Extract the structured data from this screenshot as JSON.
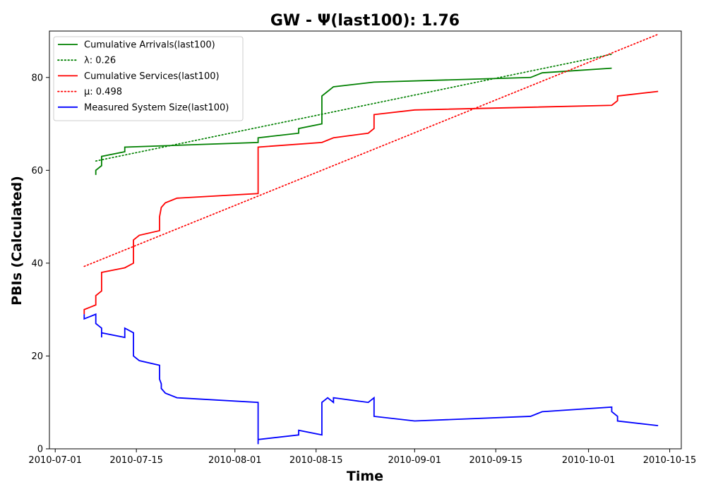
{
  "chart_data": {
    "type": "line",
    "title": "GW -  Ψ(last100): 1.76",
    "xlabel": "Time",
    "ylabel": "PBIs (Calculated)",
    "x_type": "date",
    "xlim": [
      "2010-06-30",
      "2010-10-17"
    ],
    "ylim": [
      0,
      90
    ],
    "x_ticks": [
      "2010-07-01",
      "2010-07-15",
      "2010-08-01",
      "2010-08-15",
      "2010-09-01",
      "2010-09-15",
      "2010-10-01",
      "2010-10-15"
    ],
    "y_ticks": [
      0,
      20,
      40,
      60,
      80
    ],
    "grid": false,
    "legend_position": "top-left",
    "series": [
      {
        "name": "Cumulative Arrivals(last100)",
        "legend_label": "Cumulative Arrivals(last100)",
        "color": "#008000",
        "style": "solid",
        "points": [
          [
            "2010-07-08",
            59
          ],
          [
            "2010-07-08",
            60
          ],
          [
            "2010-07-09",
            61
          ],
          [
            "2010-07-09",
            62
          ],
          [
            "2010-07-09",
            63
          ],
          [
            "2010-07-13",
            64
          ],
          [
            "2010-07-13",
            65
          ],
          [
            "2010-07-20",
            65.3
          ],
          [
            "2010-08-05",
            66
          ],
          [
            "2010-08-05",
            67
          ],
          [
            "2010-08-12",
            68
          ],
          [
            "2010-08-12",
            69
          ],
          [
            "2010-08-16",
            70
          ],
          [
            "2010-08-16",
            75
          ],
          [
            "2010-08-16",
            76
          ],
          [
            "2010-08-17",
            77
          ],
          [
            "2010-08-18",
            78
          ],
          [
            "2010-08-25",
            79
          ],
          [
            "2010-09-21",
            80
          ],
          [
            "2010-09-23",
            81
          ],
          [
            "2010-10-05",
            82
          ]
        ]
      },
      {
        "name": "lambda fit",
        "legend_label": "λ: 0.26",
        "color": "#008000",
        "style": "dotted",
        "points": [
          [
            "2010-07-08",
            62
          ],
          [
            "2010-10-05",
            85
          ]
        ]
      },
      {
        "name": "Cumulative Services(last100)",
        "legend_label": "Cumulative Services(last100)",
        "color": "#ff0000",
        "style": "solid",
        "points": [
          [
            "2010-07-06",
            29
          ],
          [
            "2010-07-06",
            30
          ],
          [
            "2010-07-08",
            31
          ],
          [
            "2010-07-08",
            33
          ],
          [
            "2010-07-09",
            34
          ],
          [
            "2010-07-09",
            36
          ],
          [
            "2010-07-09",
            38
          ],
          [
            "2010-07-13",
            39
          ],
          [
            "2010-07-14.5",
            40
          ],
          [
            "2010-07-14.5",
            45
          ],
          [
            "2010-07-15.5",
            46
          ],
          [
            "2010-07-19",
            47
          ],
          [
            "2010-07-19",
            50
          ],
          [
            "2010-07-19.3",
            52
          ],
          [
            "2010-07-20",
            53
          ],
          [
            "2010-07-22",
            54
          ],
          [
            "2010-08-05",
            55
          ],
          [
            "2010-08-05",
            65
          ],
          [
            "2010-08-16",
            66
          ],
          [
            "2010-08-18",
            67
          ],
          [
            "2010-08-24",
            68
          ],
          [
            "2010-08-25",
            69
          ],
          [
            "2010-08-25",
            72
          ],
          [
            "2010-09-01",
            73
          ],
          [
            "2010-10-05",
            74
          ],
          [
            "2010-10-06",
            75
          ],
          [
            "2010-10-06",
            76
          ],
          [
            "2010-10-13",
            77
          ]
        ]
      },
      {
        "name": "mu fit",
        "legend_label": "μ: 0.498",
        "color": "#ff0000",
        "style": "dotted",
        "points": [
          [
            "2010-07-06",
            39.3
          ],
          [
            "2010-10-13",
            89.3
          ]
        ]
      },
      {
        "name": "Measured System Size(last100)",
        "legend_label": "Measured System Size(last100)",
        "color": "#0000ff",
        "style": "solid",
        "points": [
          [
            "2010-07-06",
            29
          ],
          [
            "2010-07-06",
            28
          ],
          [
            "2010-07-08",
            29
          ],
          [
            "2010-07-08",
            27
          ],
          [
            "2010-07-09",
            26
          ],
          [
            "2010-07-09",
            24
          ],
          [
            "2010-07-09",
            25
          ],
          [
            "2010-07-13",
            24
          ],
          [
            "2010-07-13",
            26
          ],
          [
            "2010-07-14.5",
            25
          ],
          [
            "2010-07-14.5",
            20
          ],
          [
            "2010-07-15.5",
            19
          ],
          [
            "2010-07-19",
            18
          ],
          [
            "2010-07-19",
            15
          ],
          [
            "2010-07-19.3",
            14
          ],
          [
            "2010-07-19.3",
            13
          ],
          [
            "2010-07-20",
            12
          ],
          [
            "2010-07-22",
            11
          ],
          [
            "2010-08-05",
            10
          ],
          [
            "2010-08-05",
            1
          ],
          [
            "2010-08-05",
            2
          ],
          [
            "2010-08-12",
            3
          ],
          [
            "2010-08-12",
            4
          ],
          [
            "2010-08-16",
            3
          ],
          [
            "2010-08-16",
            10
          ],
          [
            "2010-08-17",
            11
          ],
          [
            "2010-08-18",
            10
          ],
          [
            "2010-08-18",
            11
          ],
          [
            "2010-08-24",
            10
          ],
          [
            "2010-08-25",
            11
          ],
          [
            "2010-08-25",
            7
          ],
          [
            "2010-09-01",
            6
          ],
          [
            "2010-09-21",
            7
          ],
          [
            "2010-09-23",
            8
          ],
          [
            "2010-10-05",
            9
          ],
          [
            "2010-10-05",
            8
          ],
          [
            "2010-10-06",
            7
          ],
          [
            "2010-10-06",
            6
          ],
          [
            "2010-10-13",
            5
          ]
        ]
      }
    ]
  }
}
